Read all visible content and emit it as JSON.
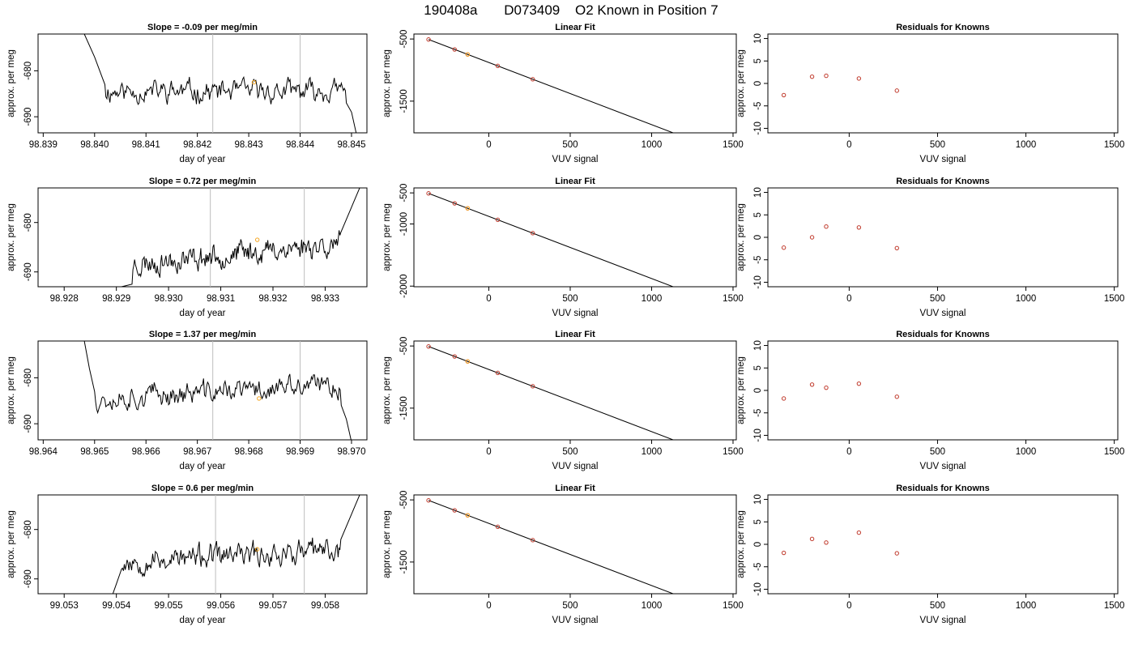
{
  "title": {
    "run": "190408a",
    "tank": "D073409",
    "text": "O2 Known in Position  7"
  },
  "colors": {
    "trace": "#000000",
    "marker": "#f5a623",
    "point": "#c0392b",
    "refline": "#bdbdbd"
  },
  "chart_data": [
    {
      "type": "line",
      "title": "Slope =  -0.09  per meg/min",
      "xlabel": "day of year",
      "ylabel": "approx. per meg",
      "xlim": [
        98.8389,
        98.8453
      ],
      "ylim": [
        -693.5,
        -672
      ],
      "xticks": [
        "98.839",
        "98.840",
        "98.841",
        "98.842",
        "98.843",
        "98.844",
        "98.845"
      ],
      "xtick_values": [
        98.839,
        98.84,
        98.841,
        98.842,
        98.843,
        98.844,
        98.845
      ],
      "yticks": [
        "-680",
        "-690"
      ],
      "ytick_values": [
        -680,
        -690
      ],
      "vlines": [
        98.8423,
        98.844
      ],
      "marker": {
        "x": 98.8431,
        "y": -682.5
      },
      "trace_profile": {
        "x_start": 98.8398,
        "x_end": 98.8451,
        "baseline": -684.5,
        "drift_per_day": 0,
        "amplitude": 1.8,
        "seed": 11,
        "start_points": [
          [
            98.8398,
            -672
          ],
          [
            98.84,
            -677
          ],
          [
            98.8402,
            -683
          ]
        ],
        "end_points": [
          [
            98.8449,
            -687
          ],
          [
            98.845,
            -689
          ],
          [
            98.8451,
            -694
          ]
        ]
      }
    },
    {
      "type": "line",
      "title": "Linear Fit",
      "xlabel": "VUV signal",
      "ylabel": "approx. per meg",
      "xlim": [
        -460,
        1520
      ],
      "ylim": [
        -2010,
        -420
      ],
      "xticks": [
        "0",
        "500",
        "1000",
        "1500"
      ],
      "xtick_values": [
        0,
        500,
        1000,
        1500
      ],
      "yticks": [
        "-500",
        "-1500"
      ],
      "ytick_values": [
        -500,
        -1500
      ],
      "fit": {
        "slope": -1.0,
        "intercept": -878,
        "x_start": -370,
        "x_end": 1490
      },
      "points": [
        [
          -370,
          -508
        ],
        [
          -210,
          -668
        ],
        [
          -130,
          -748
        ],
        [
          55,
          -933
        ],
        [
          270,
          -1148
        ]
      ],
      "orange_points": [
        [
          -130,
          -748
        ]
      ]
    },
    {
      "type": "scatter",
      "title": "Residuals for Knowns",
      "xlabel": "VUV signal",
      "ylabel": "approx. per meg",
      "xlim": [
        -460,
        1520
      ],
      "ylim": [
        -11,
        11
      ],
      "xticks": [
        "0",
        "500",
        "1000",
        "1500"
      ],
      "xtick_values": [
        0,
        500,
        1000,
        1500
      ],
      "yticks": [
        "-10",
        "-5",
        "0",
        "5",
        "10"
      ],
      "ytick_values": [
        -10,
        -5,
        0,
        5,
        10
      ],
      "points": [
        [
          -370,
          -2.6
        ],
        [
          -210,
          1.5
        ],
        [
          -130,
          1.7
        ],
        [
          55,
          1.1
        ],
        [
          270,
          -1.6
        ]
      ]
    },
    {
      "type": "line",
      "title": "Slope =  0.72  per meg/min",
      "xlabel": "day of year",
      "ylabel": "approx. per meg",
      "xlim": [
        98.9275,
        98.9338
      ],
      "ylim": [
        -693,
        -673
      ],
      "xticks": [
        "98.928",
        "98.929",
        "98.930",
        "98.931",
        "98.932",
        "98.933"
      ],
      "xtick_values": [
        98.928,
        98.929,
        98.93,
        98.931,
        98.932,
        98.933
      ],
      "yticks": [
        "-680",
        "-690"
      ],
      "ytick_values": [
        -680,
        -690
      ],
      "vlines": [
        98.9308,
        98.9326
      ],
      "marker": {
        "x": 98.9317,
        "y": -683.5
      },
      "trace_profile": {
        "x_start": 98.929,
        "x_end": 98.9337,
        "baseline": -688.5,
        "drift_per_day": 1100,
        "amplitude": 1.8,
        "seed": 23,
        "start_points": [
          [
            98.929,
            -694
          ],
          [
            98.9291,
            -693
          ],
          [
            98.9293,
            -692.5
          ]
        ],
        "end_points": [
          [
            98.9333,
            -682
          ],
          [
            98.9335,
            -677
          ],
          [
            98.9337,
            -672
          ]
        ]
      }
    },
    {
      "type": "line",
      "title": "Linear Fit",
      "xlabel": "VUV signal",
      "ylabel": "approx. per meg",
      "xlim": [
        -460,
        1520
      ],
      "ylim": [
        -2010,
        -420
      ],
      "xticks": [
        "0",
        "500",
        "1000",
        "1500"
      ],
      "xtick_values": [
        0,
        500,
        1000,
        1500
      ],
      "yticks": [
        "-500",
        "-1000",
        "-2000"
      ],
      "ytick_values": [
        -500,
        -1000,
        -2000
      ],
      "fit": {
        "slope": -1.0,
        "intercept": -878,
        "x_start": -370,
        "x_end": 1490
      },
      "points": [
        [
          -370,
          -508
        ],
        [
          -210,
          -668
        ],
        [
          -130,
          -748
        ],
        [
          55,
          -933
        ],
        [
          270,
          -1148
        ]
      ],
      "orange_points": [
        [
          -130,
          -748
        ]
      ]
    },
    {
      "type": "scatter",
      "title": "Residuals for Knowns",
      "xlabel": "VUV signal",
      "ylabel": "approx. per meg",
      "xlim": [
        -460,
        1520
      ],
      "ylim": [
        -11,
        11
      ],
      "xticks": [
        "0",
        "500",
        "1000",
        "1500"
      ],
      "xtick_values": [
        0,
        500,
        1000,
        1500
      ],
      "yticks": [
        "-10",
        "-5",
        "0",
        "5",
        "10"
      ],
      "ytick_values": [
        -10,
        -5,
        0,
        5,
        10
      ],
      "points": [
        [
          -370,
          -2.3
        ],
        [
          -210,
          0.0
        ],
        [
          -130,
          2.4
        ],
        [
          55,
          2.2
        ],
        [
          270,
          -2.4
        ]
      ]
    },
    {
      "type": "line",
      "title": "Slope =  1.37  per meg/min",
      "xlabel": "day of year",
      "ylabel": "approx. per meg",
      "xlim": [
        98.9639,
        98.9703
      ],
      "ylim": [
        -693.5,
        -672
      ],
      "xticks": [
        "98.964",
        "98.965",
        "98.966",
        "98.967",
        "98.968",
        "98.969",
        "98.970"
      ],
      "xtick_values": [
        98.964,
        98.965,
        98.966,
        98.967,
        98.968,
        98.969,
        98.97
      ],
      "yticks": [
        "-680",
        "-690"
      ],
      "ytick_values": [
        -680,
        -690
      ],
      "vlines": [
        98.9673,
        98.969
      ],
      "marker": {
        "x": 98.9682,
        "y": -684.5
      },
      "trace_profile": {
        "x_start": 98.9648,
        "x_end": 98.97,
        "baseline": -684.5,
        "drift_per_day": 600,
        "amplitude": 1.9,
        "seed": 37,
        "start_points": [
          [
            98.9648,
            -672
          ],
          [
            98.9649,
            -678
          ],
          [
            98.965,
            -683
          ]
        ],
        "end_points": [
          [
            98.9698,
            -686
          ],
          [
            98.9699,
            -689
          ],
          [
            98.97,
            -694
          ]
        ]
      }
    },
    {
      "type": "line",
      "title": "Linear Fit",
      "xlabel": "VUV signal",
      "ylabel": "approx. per meg",
      "xlim": [
        -460,
        1520
      ],
      "ylim": [
        -2010,
        -420
      ],
      "xticks": [
        "0",
        "500",
        "1000",
        "1500"
      ],
      "xtick_values": [
        0,
        500,
        1000,
        1500
      ],
      "yticks": [
        "-500",
        "-1500"
      ],
      "ytick_values": [
        -500,
        -1500
      ],
      "fit": {
        "slope": -1.0,
        "intercept": -878,
        "x_start": -370,
        "x_end": 1490
      },
      "points": [
        [
          -370,
          -508
        ],
        [
          -210,
          -668
        ],
        [
          -130,
          -748
        ],
        [
          55,
          -933
        ],
        [
          270,
          -1148
        ]
      ],
      "orange_points": [
        [
          -130,
          -748
        ]
      ]
    },
    {
      "type": "scatter",
      "title": "Residuals for Knowns",
      "xlabel": "VUV signal",
      "ylabel": "approx. per meg",
      "xlim": [
        -460,
        1520
      ],
      "ylim": [
        -11,
        11
      ],
      "xticks": [
        "0",
        "500",
        "1000",
        "1500"
      ],
      "xtick_values": [
        0,
        500,
        1000,
        1500
      ],
      "yticks": [
        "-10",
        "-5",
        "0",
        "5",
        "10"
      ],
      "ytick_values": [
        -10,
        -5,
        0,
        5,
        10
      ],
      "points": [
        [
          -370,
          -1.8
        ],
        [
          -210,
          1.3
        ],
        [
          -130,
          0.6
        ],
        [
          55,
          1.5
        ],
        [
          270,
          -1.4
        ]
      ]
    },
    {
      "type": "line",
      "title": "Slope =  0.6  per meg/min",
      "xlabel": "day of year",
      "ylabel": "approx. per meg",
      "xlim": [
        99.0525,
        99.0588
      ],
      "ylim": [
        -693,
        -673
      ],
      "xticks": [
        "99.053",
        "99.054",
        "99.055",
        "99.056",
        "99.057",
        "99.058"
      ],
      "xtick_values": [
        99.053,
        99.054,
        99.055,
        99.056,
        99.057,
        99.058
      ],
      "yticks": [
        "-680",
        "-690"
      ],
      "ytick_values": [
        -680,
        -690
      ],
      "vlines": [
        99.0559,
        99.0576
      ],
      "marker": {
        "x": 99.0567,
        "y": -684
      },
      "trace_profile": {
        "x_start": 99.0539,
        "x_end": 99.0587,
        "baseline": -686.5,
        "drift_per_day": 550,
        "amplitude": 1.8,
        "seed": 53,
        "start_points": [
          [
            99.0539,
            -694
          ],
          [
            99.054,
            -691
          ],
          [
            99.0541,
            -688
          ]
        ],
        "end_points": [
          [
            99.0583,
            -682
          ],
          [
            99.0585,
            -677
          ],
          [
            99.0587,
            -672
          ]
        ]
      }
    },
    {
      "type": "line",
      "title": "Linear Fit",
      "xlabel": "VUV signal",
      "ylabel": "approx. per meg",
      "xlim": [
        -460,
        1520
      ],
      "ylim": [
        -2010,
        -420
      ],
      "xticks": [
        "0",
        "500",
        "1000",
        "1500"
      ],
      "xtick_values": [
        0,
        500,
        1000,
        1500
      ],
      "yticks": [
        "-500",
        "-1500"
      ],
      "ytick_values": [
        -500,
        -1500
      ],
      "fit": {
        "slope": -1.0,
        "intercept": -878,
        "x_start": -370,
        "x_end": 1490
      },
      "points": [
        [
          -370,
          -508
        ],
        [
          -210,
          -668
        ],
        [
          -130,
          -748
        ],
        [
          55,
          -933
        ],
        [
          270,
          -1148
        ]
      ],
      "orange_points": [
        [
          -130,
          -748
        ]
      ]
    },
    {
      "type": "scatter",
      "title": "Residuals for Knowns",
      "xlabel": "VUV signal",
      "ylabel": "approx. per meg",
      "xlim": [
        -460,
        1520
      ],
      "ylim": [
        -11,
        11
      ],
      "xticks": [
        "0",
        "500",
        "1000",
        "1500"
      ],
      "xtick_values": [
        0,
        500,
        1000,
        1500
      ],
      "yticks": [
        "-10",
        "-5",
        "0",
        "5",
        "10"
      ],
      "ytick_values": [
        -10,
        -5,
        0,
        5,
        10
      ],
      "points": [
        [
          -370,
          -1.9
        ],
        [
          -210,
          1.2
        ],
        [
          -130,
          0.4
        ],
        [
          55,
          2.6
        ],
        [
          270,
          -2.0
        ]
      ]
    }
  ]
}
